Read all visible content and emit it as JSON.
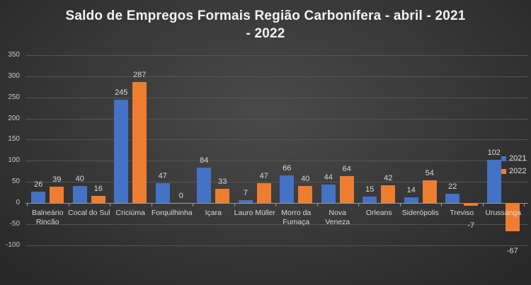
{
  "chart_data": {
    "type": "bar",
    "title": "Saldo de Empregos Formais Região Carbonífera - abril - 2021 - 2022",
    "title_lines": [
      "Saldo de Empregos Formais Região Carbonífera - abril - 2021",
      "- 2022"
    ],
    "xlabel": "",
    "ylabel": "",
    "ylim": [
      -100,
      350
    ],
    "yticks": [
      350,
      300,
      250,
      200,
      150,
      100,
      50,
      0,
      -50,
      -100
    ],
    "grid": true,
    "legend_position": "right",
    "categories": [
      "Balneário Rincão",
      "Cocal do Sul",
      "Criciúma",
      "Forquilhinha",
      "Içara",
      "Lauro Müller",
      "Morro da Fumaça",
      "Nova Veneza",
      "Orleans",
      "Siderópolis",
      "Treviso",
      "Urussanga"
    ],
    "category_lines": [
      [
        "Balneário",
        "Rincão"
      ],
      [
        "Cocal do Sul"
      ],
      [
        "Criciúma"
      ],
      [
        "Forquilhinha"
      ],
      [
        "Içara"
      ],
      [
        "Lauro Müller"
      ],
      [
        "Morro da",
        "Fumaça"
      ],
      [
        "Nova Veneza"
      ],
      [
        "Orleans"
      ],
      [
        "Siderópolis"
      ],
      [
        "Treviso"
      ],
      [
        "Urussanga"
      ]
    ],
    "series": [
      {
        "name": "2021",
        "color": "#4472C4",
        "values": [
          26,
          40,
          245,
          47,
          84,
          7,
          66,
          44,
          15,
          14,
          22,
          102
        ]
      },
      {
        "name": "2022",
        "color": "#ED7D31",
        "values": [
          39,
          16,
          287,
          0,
          33,
          47,
          40,
          64,
          42,
          54,
          -7,
          -67
        ]
      }
    ]
  }
}
